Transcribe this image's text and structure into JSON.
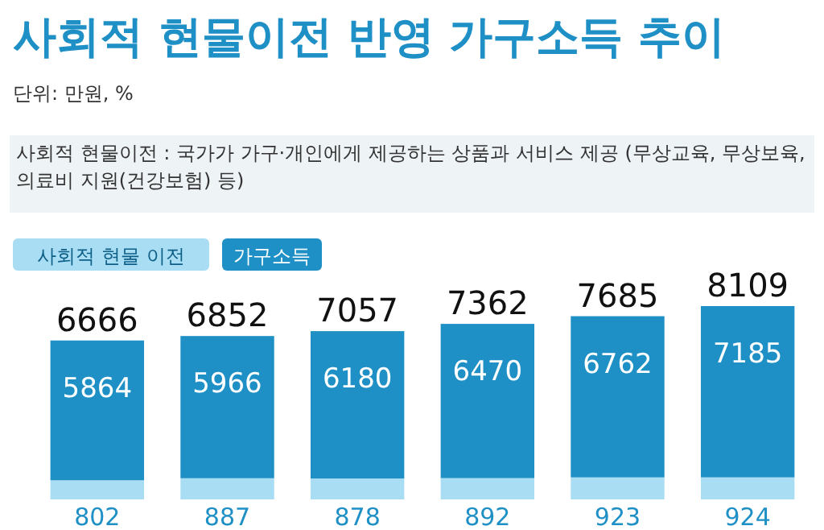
{
  "chart_data": {
    "type": "bar",
    "title": "사회적 현물이전 반영 가구소득 추이",
    "subtitle": "단위: 만원, %",
    "annotations": [
      "사회적 현물이전 : 국가가 가구·개인에게 제공하는 상품과 서비스 제공 (무상교육, 무상보육, 의료비 지원(건강보험) 등)"
    ],
    "categories": [
      null,
      null,
      null,
      null,
      null,
      null
    ],
    "stacked": true,
    "data_labels": true,
    "legend": "top left",
    "series": [
      {
        "name": "사회적 현물 이전",
        "color": "#a9ddf3",
        "values": [
          802,
          887,
          878,
          892,
          923,
          924
        ]
      },
      {
        "name": "가구소득",
        "color": "#1f90c6",
        "values": [
          5864,
          5966,
          6180,
          6470,
          6762,
          7185
        ]
      }
    ],
    "totals": [
      "6666",
      "6852",
      "7057",
      "7362",
      "7685",
      "8109"
    ]
  }
}
